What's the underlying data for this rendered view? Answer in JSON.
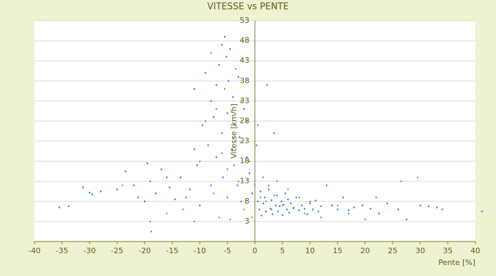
{
  "chart_data": {
    "type": "scatter",
    "title": "VITESSE vs PENTE",
    "x_label": "Pente [%]",
    "y_label": "Vitesse [km/h]",
    "xlim": [
      -40,
      40
    ],
    "xticks": [
      -40,
      -35,
      -30,
      -25,
      -20,
      -15,
      -10,
      -5,
      0,
      5,
      10,
      15,
      20,
      25,
      30,
      35,
      40
    ],
    "ylim": [
      -2,
      53
    ],
    "yticks": [
      3,
      8,
      13,
      18,
      23,
      28,
      33,
      38,
      43,
      48,
      53
    ],
    "grid": true,
    "series": [
      {
        "color": "#2f7fd6",
        "x": [
          -35.5,
          -33.8,
          -31.2,
          -30,
          -29.5,
          -28,
          -25,
          -23.5,
          -22,
          -21.2,
          -20,
          -19.5,
          -19,
          -18.8,
          -18,
          -17,
          -16,
          -15.5,
          -14.5,
          -13.5,
          -12.5,
          -11.8,
          -11,
          -11,
          -10.5,
          -10,
          -9.5,
          -9,
          -8.5,
          -8,
          -8,
          -7.5,
          -7,
          -7,
          -6.5,
          -6,
          -6,
          -5.8,
          -5.5,
          -5.2,
          -5,
          -5,
          -4.8,
          -4.5,
          -4.2,
          -4,
          -3.8,
          -3.5,
          -3.2,
          -3,
          -2.8,
          -2.5,
          -2,
          -1.5,
          -1,
          -0.5,
          0.3,
          0.5,
          0.8,
          1,
          1.2,
          1.5,
          1.8,
          2,
          2.2,
          2.5,
          2.8,
          3,
          3.2,
          3.5,
          3.8,
          4,
          4.2,
          4.5,
          4.8,
          5,
          5.2,
          5.5,
          5.8,
          6,
          6.2,
          6.5,
          7,
          7.5,
          8,
          8.5,
          9,
          9.5,
          10,
          10.5,
          11,
          11.5,
          12,
          13,
          14,
          15,
          16,
          17,
          18,
          19.5,
          21,
          22.5,
          24,
          26,
          27.5,
          30,
          31.5,
          33,
          34,
          41.2
        ],
        "values": [
          6.5,
          6.8,
          11.5,
          10.2,
          9.8,
          10.5,
          11,
          15.5,
          12,
          9,
          8,
          17.5,
          13,
          0.5,
          10,
          16,
          14,
          11.5,
          8.5,
          14,
          9,
          11,
          21,
          36,
          17,
          7,
          27,
          40,
          22,
          33,
          12,
          29,
          37,
          19,
          42,
          47,
          25,
          14,
          49,
          44,
          30,
          9,
          38,
          46,
          21,
          34,
          17,
          27,
          12,
          39,
          24,
          8,
          31,
          19,
          15,
          10,
          22,
          8,
          6,
          10.5,
          4.5,
          7.5,
          9,
          5.5,
          37,
          11,
          6.2,
          8.3,
          4.8,
          25,
          7,
          9.5,
          5.5,
          6.8,
          8,
          4.6,
          7.2,
          10,
          6,
          8.5,
          5.2,
          7.5,
          6.3,
          9,
          5.8,
          7,
          6.2,
          4.8,
          7.5,
          6,
          8.2,
          5.5,
          6.8,
          12,
          7,
          6,
          9,
          5.8,
          6.5,
          7,
          6.2,
          5,
          7.5,
          6,
          3.5,
          7,
          6.8,
          6.5,
          6,
          5.5
        ]
      },
      {
        "color": "#9a9a2e",
        "x": [
          -11,
          -10,
          -9,
          -8,
          -7.5,
          -7,
          -6.5,
          -6,
          -5.5,
          -5,
          -4.5,
          -4,
          -3.5,
          -3,
          -2.5,
          -2,
          -1.5,
          -1,
          -0.5,
          0,
          0.5,
          1,
          1.5,
          2,
          2.5,
          3,
          3.5,
          4,
          5,
          6,
          7,
          8,
          9,
          10,
          12,
          15,
          17,
          20,
          22,
          26.5,
          29.5,
          -19,
          -16,
          -13,
          -24
        ],
        "values": [
          3,
          18,
          28,
          45,
          10,
          31,
          4,
          20,
          36,
          16,
          3.5,
          24,
          41,
          13,
          33,
          6,
          28,
          18,
          4,
          12,
          27,
          9,
          14,
          8,
          12,
          6,
          9.5,
          13,
          7,
          11,
          6.5,
          9,
          5,
          8,
          4,
          7,
          5,
          3.5,
          9,
          13,
          14,
          3,
          5,
          6,
          12
        ]
      }
    ]
  }
}
